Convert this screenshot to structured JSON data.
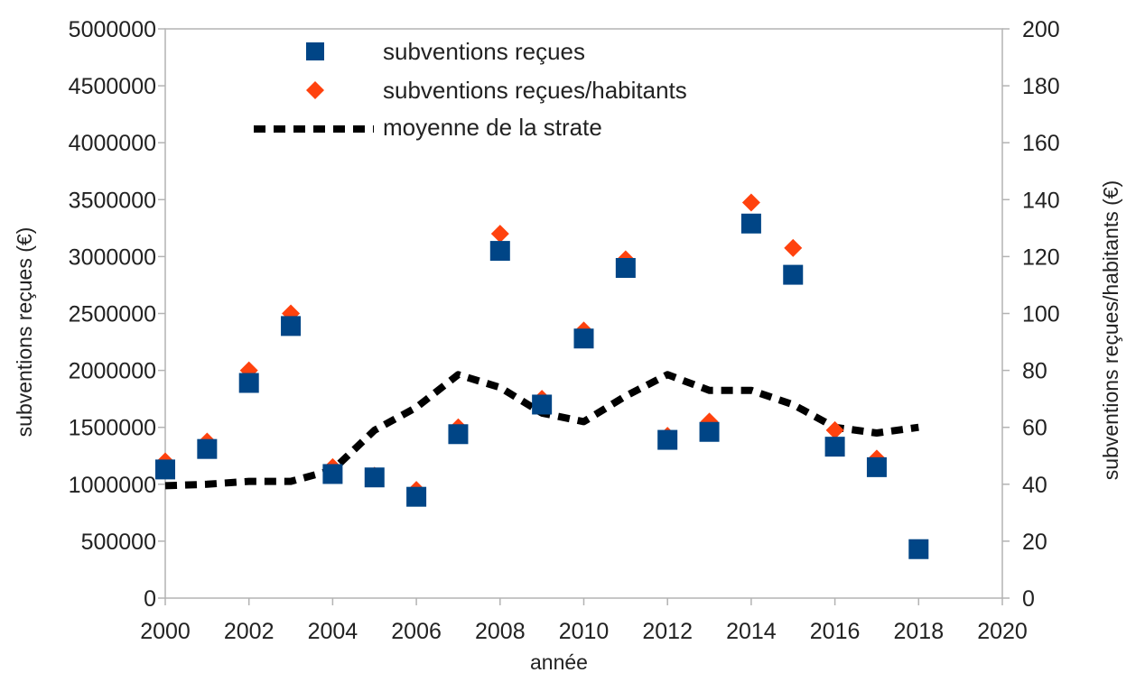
{
  "chart_data": {
    "type": "scatter",
    "title": "",
    "xlabel": "année",
    "ylabel_left": "subventions reçues (€)",
    "ylabel_right": "subventions reçues/habitants (€)",
    "xlim": [
      2000,
      2020
    ],
    "ylim_left": [
      0,
      5000000
    ],
    "ylim_right": [
      0,
      200
    ],
    "x_ticks": [
      "2000",
      "2002",
      "2004",
      "2006",
      "2008",
      "2010",
      "2012",
      "2014",
      "2016",
      "2018",
      "2020"
    ],
    "y_left_ticks": [
      "0",
      "500000",
      "1000000",
      "1500000",
      "2000000",
      "2500000",
      "3000000",
      "3500000",
      "4000000",
      "4500000",
      "5000000"
    ],
    "y_right_ticks": [
      "0",
      "20",
      "40",
      "60",
      "80",
      "100",
      "120",
      "140",
      "160",
      "180",
      "200"
    ],
    "grid": false,
    "legend_position": "top-left",
    "series": [
      {
        "name": "subventions reçues",
        "axis": "left",
        "marker": "square",
        "color": "#004586",
        "x": [
          2000,
          2001,
          2002,
          2003,
          2004,
          2005,
          2006,
          2007,
          2008,
          2009,
          2010,
          2011,
          2012,
          2013,
          2014,
          2015,
          2016,
          2017,
          2018
        ],
        "y": [
          1130000,
          1310000,
          1890000,
          2390000,
          1090000,
          1060000,
          890000,
          1440000,
          3050000,
          1700000,
          2280000,
          2900000,
          1390000,
          1460000,
          3290000,
          2840000,
          1330000,
          1150000,
          430000
        ]
      },
      {
        "name": "subventions reçues/habitants",
        "axis": "right",
        "marker": "diamond",
        "color": "#ff420e",
        "x": [
          2000,
          2001,
          2002,
          2003,
          2004,
          2005,
          2006,
          2007,
          2008,
          2009,
          2010,
          2011,
          2012,
          2013,
          2014,
          2015,
          2016,
          2017
        ],
        "y": [
          48,
          55,
          80,
          100,
          46,
          43,
          38,
          60,
          128,
          70,
          94,
          119,
          57,
          62,
          139,
          123,
          59,
          49
        ]
      },
      {
        "name": "moyenne de la strate",
        "axis": "right",
        "marker": "dashed-line",
        "color": "#000000",
        "x": [
          2000,
          2001,
          2002,
          2003,
          2004,
          2005,
          2006,
          2007,
          2008,
          2009,
          2010,
          2011,
          2012,
          2013,
          2014,
          2015,
          2016,
          2017,
          2018
        ],
        "y": [
          39.5,
          40,
          41,
          41,
          45,
          59,
          67,
          78.5,
          74,
          65,
          62,
          71,
          78.5,
          73,
          73,
          68,
          60,
          58,
          60
        ]
      }
    ]
  }
}
